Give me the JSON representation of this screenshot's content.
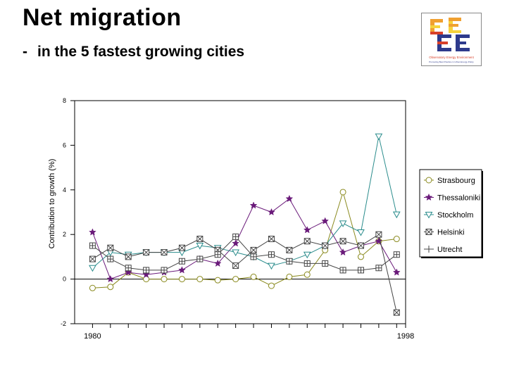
{
  "header": {
    "title": "Net migration",
    "subtitle_bullet": "-",
    "subtitle": "in the 5 fastest growing cities"
  },
  "logo": {
    "caption1": "Observatory Energy Environment",
    "caption2": "Promoting Best Practice in Urban Energy Policy",
    "colors": {
      "blue": "#2e3a8c",
      "orange": "#f0a030",
      "red": "#d8402a",
      "yellow": "#f6d23c"
    }
  },
  "chart_data": {
    "type": "line",
    "title": "",
    "xlabel": "",
    "ylabel": "Contribution to growth (%)",
    "ylim": [
      -2,
      8
    ],
    "yticks": [
      -2,
      0,
      2,
      4,
      6,
      8
    ],
    "xlim": [
      1979,
      1997.5
    ],
    "x": [
      1980,
      1981,
      1982,
      1983,
      1984,
      1985,
      1986,
      1987,
      1988,
      1989,
      1990,
      1991,
      1992,
      1993,
      1994,
      1995,
      1996,
      1997
    ],
    "x_tick_labels": [
      {
        "x": 1980,
        "label": "1980"
      },
      {
        "x": 1997.5,
        "label": "1998"
      }
    ],
    "legend_position": "right",
    "series": [
      {
        "name": "Strasbourg",
        "marker": "circle",
        "color": "#8a8a1e",
        "values": [
          -0.4,
          -0.35,
          0.3,
          0.0,
          0.0,
          0.0,
          0.0,
          -0.05,
          0.0,
          0.1,
          -0.3,
          0.1,
          0.2,
          1.3,
          3.9,
          1.0,
          1.7,
          1.8
        ]
      },
      {
        "name": "Thessaloniki",
        "marker": "star",
        "color": "#6a1a7a",
        "values": [
          2.1,
          0.0,
          0.3,
          0.2,
          0.3,
          0.4,
          0.9,
          0.7,
          1.6,
          3.3,
          3.0,
          3.6,
          2.2,
          2.6,
          1.2,
          1.5,
          1.7,
          0.3
        ]
      },
      {
        "name": "Stockholm",
        "marker": "triangle-down",
        "color": "#2a8c8c",
        "values": [
          0.5,
          1.2,
          1.1,
          1.2,
          1.2,
          1.2,
          1.5,
          1.4,
          1.2,
          1.0,
          0.6,
          0.8,
          1.1,
          1.5,
          2.5,
          2.1,
          6.4,
          2.9
        ]
      },
      {
        "name": "Helsinki",
        "marker": "x-box",
        "color": "#444444",
        "values": [
          0.9,
          1.4,
          1.0,
          1.2,
          1.2,
          1.4,
          1.8,
          1.3,
          0.6,
          1.3,
          1.8,
          1.3,
          1.7,
          1.5,
          1.7,
          1.5,
          2.0,
          -1.5
        ]
      },
      {
        "name": "Utrecht",
        "marker": "plus-box",
        "color": "#444444",
        "values": [
          1.5,
          0.9,
          0.5,
          0.4,
          0.4,
          0.8,
          0.9,
          1.1,
          1.9,
          1.0,
          1.1,
          0.8,
          0.7,
          0.7,
          0.4,
          0.4,
          0.5,
          1.1
        ]
      }
    ]
  }
}
